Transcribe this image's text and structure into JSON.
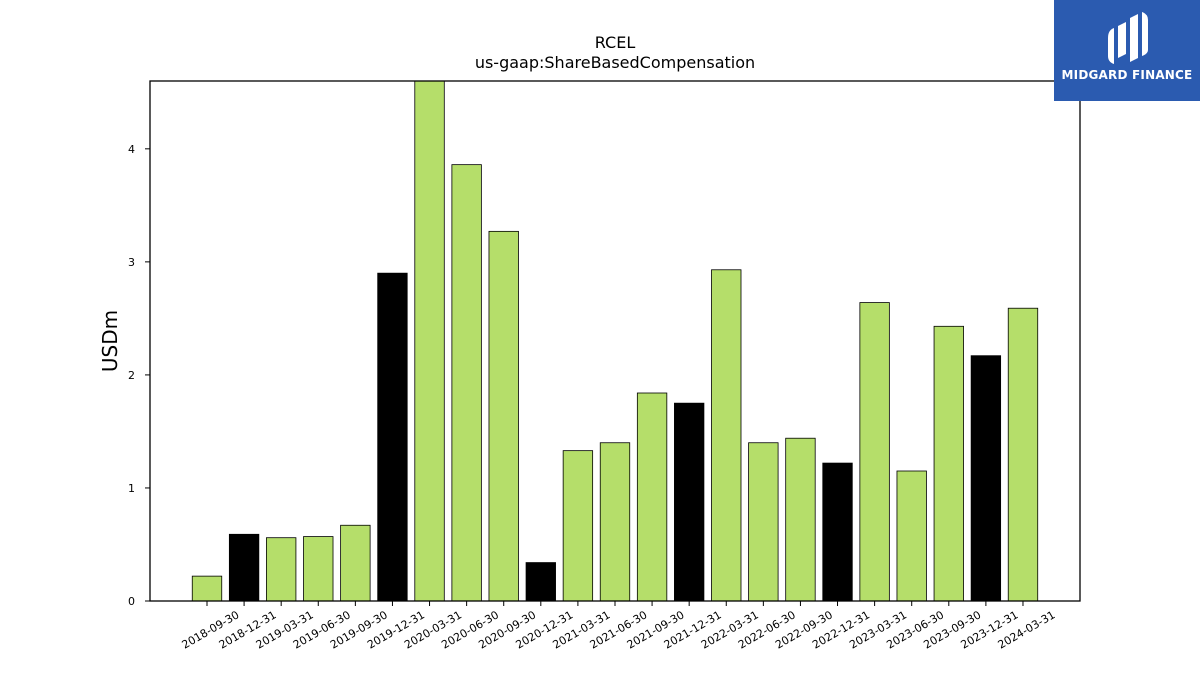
{
  "logo": {
    "text": "MIDGARD FINANCE",
    "icon": "midgard-logo-icon",
    "background": "#2b5bb0"
  },
  "chart_data": {
    "type": "bar",
    "title": "RCEL",
    "subtitle": "us-gaap:ShareBasedCompensation",
    "xlabel": "",
    "ylabel": "USDm",
    "ylim": [
      0,
      4.6
    ],
    "yticks": [
      0,
      1,
      2,
      3,
      4
    ],
    "grid": false,
    "colors": {
      "quarter": "#b5de6a",
      "year_end": "#000000",
      "edge": "#000000"
    },
    "categories": [
      "2018-09-30",
      "2018-12-31",
      "2019-03-31",
      "2019-06-30",
      "2019-09-30",
      "2019-12-31",
      "2020-03-31",
      "2020-06-30",
      "2020-09-30",
      "2020-12-31",
      "2021-03-31",
      "2021-06-30",
      "2021-09-30",
      "2021-12-31",
      "2022-03-31",
      "2022-06-30",
      "2022-09-30",
      "2022-12-31",
      "2023-03-31",
      "2023-06-30",
      "2023-09-30",
      "2023-12-31",
      "2024-03-31"
    ],
    "values": [
      0.22,
      0.59,
      0.56,
      0.57,
      0.67,
      2.9,
      4.6,
      3.86,
      3.27,
      0.34,
      1.33,
      1.4,
      1.84,
      1.75,
      2.93,
      1.4,
      1.44,
      1.22,
      2.64,
      1.15,
      2.43,
      2.17,
      2.59
    ]
  }
}
